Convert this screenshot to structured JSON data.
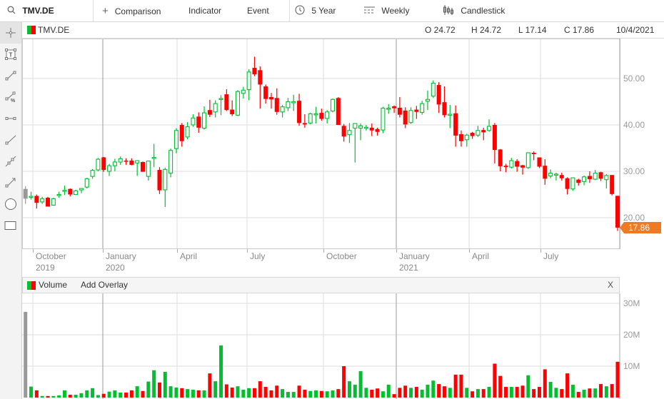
{
  "toolbar": {
    "symbol": "TMV.DE",
    "comparison": "Comparison",
    "indicator": "Indicator",
    "event": "Event",
    "range": "5 Year",
    "interval": "Weekly",
    "chart_type": "Candlestick"
  },
  "header": {
    "symbol": "TMV.DE",
    "open": "O 24.72",
    "high": "H 24.72",
    "low": "L 17.14",
    "close": "C 17.86",
    "date": "10/4/2021"
  },
  "colors": {
    "up": "#00c030",
    "down": "#ff0000",
    "first": "#999999",
    "last_price": "#f07a22"
  },
  "price_axis": [
    "50.00",
    "40.00",
    "30.00",
    "20.00"
  ],
  "last_price": "17.86",
  "x_axis": [
    {
      "m": "October",
      "y": "2019"
    },
    {
      "m": "January",
      "y": "2020"
    },
    {
      "m": "April",
      "y": ""
    },
    {
      "m": "July",
      "y": ""
    },
    {
      "m": "October",
      "y": ""
    },
    {
      "m": "January",
      "y": "2021"
    },
    {
      "m": "April",
      "y": ""
    },
    {
      "m": "July",
      "y": ""
    }
  ],
  "volume_panel": {
    "title": "Volume",
    "add_overlay": "Add Overlay",
    "close": "X",
    "axis": [
      "30M",
      "20M",
      "10M"
    ]
  },
  "chart_data": {
    "type": "candlestick",
    "interval": "weekly",
    "ylim": [
      14,
      57
    ],
    "y_ticks": [
      20,
      30,
      40,
      50
    ],
    "ohlc": [
      [
        26.2,
        26.8,
        23.0,
        24.1
      ],
      [
        24.6,
        25.6,
        23.9,
        24.6
      ],
      [
        24.7,
        25.0,
        22.0,
        23.2
      ],
      [
        23.4,
        24.5,
        23.0,
        24.1
      ],
      [
        24.3,
        24.5,
        22.4,
        22.4
      ],
      [
        22.7,
        24.3,
        22.6,
        24.1
      ],
      [
        24.9,
        25.6,
        24.3,
        25.0
      ],
      [
        25.9,
        26.9,
        24.9,
        25.9
      ],
      [
        26.2,
        26.3,
        24.6,
        25.0
      ],
      [
        25.0,
        26.0,
        24.9,
        25.8
      ],
      [
        26.0,
        26.3,
        25.3,
        26.3
      ],
      [
        26.6,
        28.6,
        26.3,
        28.4
      ],
      [
        28.9,
        30.5,
        28.4,
        30.2
      ],
      [
        30.3,
        32.9,
        30.0,
        32.6
      ],
      [
        33.0,
        33.1,
        29.9,
        30.3
      ],
      [
        30.0,
        31.6,
        29.0,
        31.2
      ],
      [
        31.2,
        32.7,
        30.0,
        32.0
      ],
      [
        32.0,
        33.2,
        31.4,
        32.7
      ],
      [
        32.3,
        32.8,
        31.4,
        32.2
      ],
      [
        32.3,
        32.8,
        31.3,
        31.4
      ],
      [
        31.8,
        32.4,
        29.0,
        32.3
      ],
      [
        32.0,
        32.1,
        29.9,
        29.9
      ],
      [
        28.9,
        32.3,
        28.0,
        32.2
      ],
      [
        32.9,
        35.9,
        30.9,
        33.0
      ],
      [
        30.3,
        30.9,
        25.1,
        25.9
      ],
      [
        26.0,
        30.8,
        22.3,
        30.4
      ],
      [
        29.6,
        34.9,
        28.7,
        34.5
      ],
      [
        34.9,
        39.3,
        33.9,
        38.8
      ],
      [
        40.0,
        40.4,
        35.3,
        36.5
      ],
      [
        37.4,
        40.6,
        36.9,
        39.6
      ],
      [
        40.0,
        42.3,
        39.6,
        41.5
      ],
      [
        41.8,
        42.7,
        38.3,
        39.4
      ],
      [
        39.3,
        44.0,
        39.0,
        42.6
      ],
      [
        43.2,
        45.4,
        41.7,
        42.2
      ],
      [
        42.8,
        45.3,
        41.6,
        44.6
      ],
      [
        45.6,
        46.4,
        42.1,
        45.7
      ],
      [
        46.6,
        47.7,
        43.0,
        43.2
      ],
      [
        43.3,
        45.3,
        41.9,
        42.3
      ],
      [
        42.1,
        47.5,
        41.9,
        47.2
      ],
      [
        46.8,
        48.2,
        45.7,
        47.5
      ],
      [
        47.6,
        52.0,
        45.3,
        51.4
      ],
      [
        52.3,
        54.7,
        50.5,
        50.9
      ],
      [
        51.8,
        52.6,
        43.5,
        48.7
      ],
      [
        48.3,
        48.7,
        44.6,
        45.6
      ],
      [
        46.0,
        46.9,
        43.5,
        45.5
      ],
      [
        45.8,
        47.9,
        42.2,
        42.8
      ],
      [
        42.8,
        44.3,
        41.6,
        43.9
      ],
      [
        43.7,
        45.8,
        43.0,
        45.0
      ],
      [
        44.8,
        46.5,
        43.0,
        45.0
      ],
      [
        45.2,
        46.7,
        39.8,
        40.4
      ],
      [
        40.4,
        42.3,
        39.4,
        40.1
      ],
      [
        40.4,
        42.6,
        40.1,
        42.4
      ],
      [
        42.3,
        43.9,
        40.3,
        42.4
      ],
      [
        42.6,
        43.5,
        40.9,
        41.3
      ],
      [
        41.4,
        43.2,
        40.3,
        42.8
      ],
      [
        43.0,
        45.7,
        42.7,
        45.5
      ],
      [
        45.8,
        46.0,
        40.0,
        40.0
      ],
      [
        39.8,
        40.2,
        36.4,
        37.5
      ],
      [
        37.9,
        40.4,
        36.1,
        38.8
      ],
      [
        39.3,
        40.3,
        31.9,
        40.3
      ],
      [
        39.3,
        40.3,
        36.7,
        39.8
      ],
      [
        39.5,
        40.0,
        38.8,
        39.5
      ],
      [
        39.4,
        40.3,
        37.6,
        38.8
      ],
      [
        39.1,
        39.4,
        37.7,
        38.5
      ],
      [
        38.9,
        43.9,
        38.2,
        43.6
      ],
      [
        43.6,
        44.5,
        42.4,
        43.6
      ],
      [
        44.0,
        44.2,
        42.6,
        43.6
      ],
      [
        43.7,
        46.0,
        41.6,
        42.2
      ],
      [
        43.1,
        43.8,
        39.3,
        40.1
      ],
      [
        40.5,
        43.8,
        40.2,
        43.1
      ],
      [
        43.3,
        44.1,
        41.3,
        42.8
      ],
      [
        42.7,
        45.2,
        42.2,
        44.6
      ],
      [
        45.1,
        47.4,
        43.2,
        45.5
      ],
      [
        46.2,
        49.6,
        45.8,
        49.0
      ],
      [
        48.6,
        49.2,
        42.6,
        44.4
      ],
      [
        44.9,
        48.3,
        41.6,
        42.1
      ],
      [
        42.3,
        44.3,
        39.3,
        42.3
      ],
      [
        42.5,
        44.2,
        35.3,
        37.7
      ],
      [
        38.0,
        38.8,
        35.3,
        36.5
      ],
      [
        36.8,
        38.1,
        35.3,
        37.8
      ],
      [
        38.3,
        38.5,
        37.0,
        37.6
      ],
      [
        37.8,
        39.8,
        37.4,
        38.8
      ],
      [
        38.9,
        39.4,
        36.7,
        38.4
      ],
      [
        38.8,
        41.2,
        38.5,
        39.7
      ],
      [
        40.0,
        40.4,
        31.7,
        34.6
      ],
      [
        34.7,
        34.8,
        30.0,
        31.1
      ],
      [
        31.2,
        31.6,
        29.8,
        30.9
      ],
      [
        30.9,
        32.9,
        30.6,
        32.3
      ],
      [
        32.2,
        32.6,
        29.9,
        31.0
      ],
      [
        31.3,
        31.4,
        29.3,
        30.8
      ],
      [
        30.8,
        34.1,
        30.5,
        34.0
      ],
      [
        34.0,
        34.3,
        32.4,
        33.7
      ],
      [
        33.0,
        33.0,
        30.7,
        31.0
      ],
      [
        31.2,
        32.6,
        27.1,
        28.4
      ],
      [
        29.0,
        30.4,
        28.5,
        29.6
      ],
      [
        29.4,
        29.7,
        28.0,
        29.4
      ],
      [
        29.2,
        29.7,
        28.0,
        28.5
      ],
      [
        28.5,
        28.7,
        25.0,
        26.2
      ],
      [
        26.2,
        28.6,
        25.8,
        28.6
      ],
      [
        28.2,
        28.4,
        26.9,
        27.5
      ],
      [
        27.8,
        29.1,
        27.0,
        28.8
      ],
      [
        29.0,
        30.0,
        27.5,
        28.3
      ],
      [
        28.3,
        30.3,
        28.1,
        29.6
      ],
      [
        29.8,
        29.9,
        27.9,
        28.4
      ],
      [
        28.2,
        29.4,
        26.3,
        29.1
      ],
      [
        29.2,
        29.2,
        24.8,
        25.1
      ],
      [
        24.72,
        24.72,
        17.14,
        17.86
      ]
    ],
    "volume_millions": [
      27.3,
      3.5,
      2.3,
      0.5,
      0.5,
      0.5,
      0.7,
      2.3,
      0.9,
      0.9,
      1.4,
      2.3,
      3.0,
      0.8,
      1.2,
      1.9,
      2.3,
      1.6,
      1.6,
      2.3,
      3.6,
      2.1,
      5.1,
      8.7,
      4.8,
      8.2,
      3.6,
      3.2,
      3.0,
      2.7,
      2.5,
      2.3,
      2.3,
      7.7,
      5.2,
      16.6,
      4.2,
      3.2,
      3.6,
      2.5,
      3.0,
      3.0,
      5.2,
      3.4,
      2.3,
      3.8,
      2.7,
      1.8,
      1.8,
      3.8,
      2.5,
      2.1,
      2.3,
      2.1,
      2.0,
      2.3,
      2.7,
      10.0,
      5.2,
      4.1,
      8.4,
      3.1,
      2.5,
      2.9,
      2.0,
      4.1,
      1.1,
      3.1,
      3.8,
      3.1,
      3.4,
      2.5,
      4.1,
      5.4,
      4.3,
      3.6,
      3.1,
      7.3,
      7.3,
      3.1,
      2.0,
      2.7,
      2.7,
      3.4,
      10.8,
      6.9,
      3.4,
      3.4,
      3.4,
      3.8,
      7.1,
      2.7,
      3.4,
      9.0,
      5.0,
      3.1,
      2.7,
      7.7,
      4.1,
      1.8,
      2.5,
      2.9,
      2.9,
      4.3,
      3.6,
      4.3,
      11.4
    ],
    "volume_ylim": [
      0,
      30
    ]
  }
}
